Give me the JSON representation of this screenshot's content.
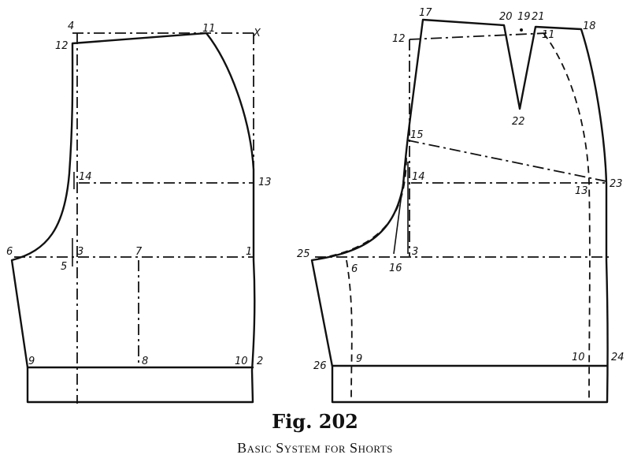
{
  "figure": {
    "number": "Fig. 202",
    "caption": "Basic System for Shorts"
  },
  "front_labels": [
    "4",
    "11",
    "X",
    "12",
    "14",
    "13",
    "6",
    "3",
    "7",
    "1",
    "5",
    "9",
    "8",
    "10",
    "2"
  ],
  "back_labels": [
    "17",
    "20",
    "19",
    "21",
    "18",
    "12",
    "11",
    "22",
    "15",
    "14",
    "13",
    "23",
    "25",
    "6",
    "16",
    "3",
    "26",
    "9",
    "10",
    "24"
  ]
}
